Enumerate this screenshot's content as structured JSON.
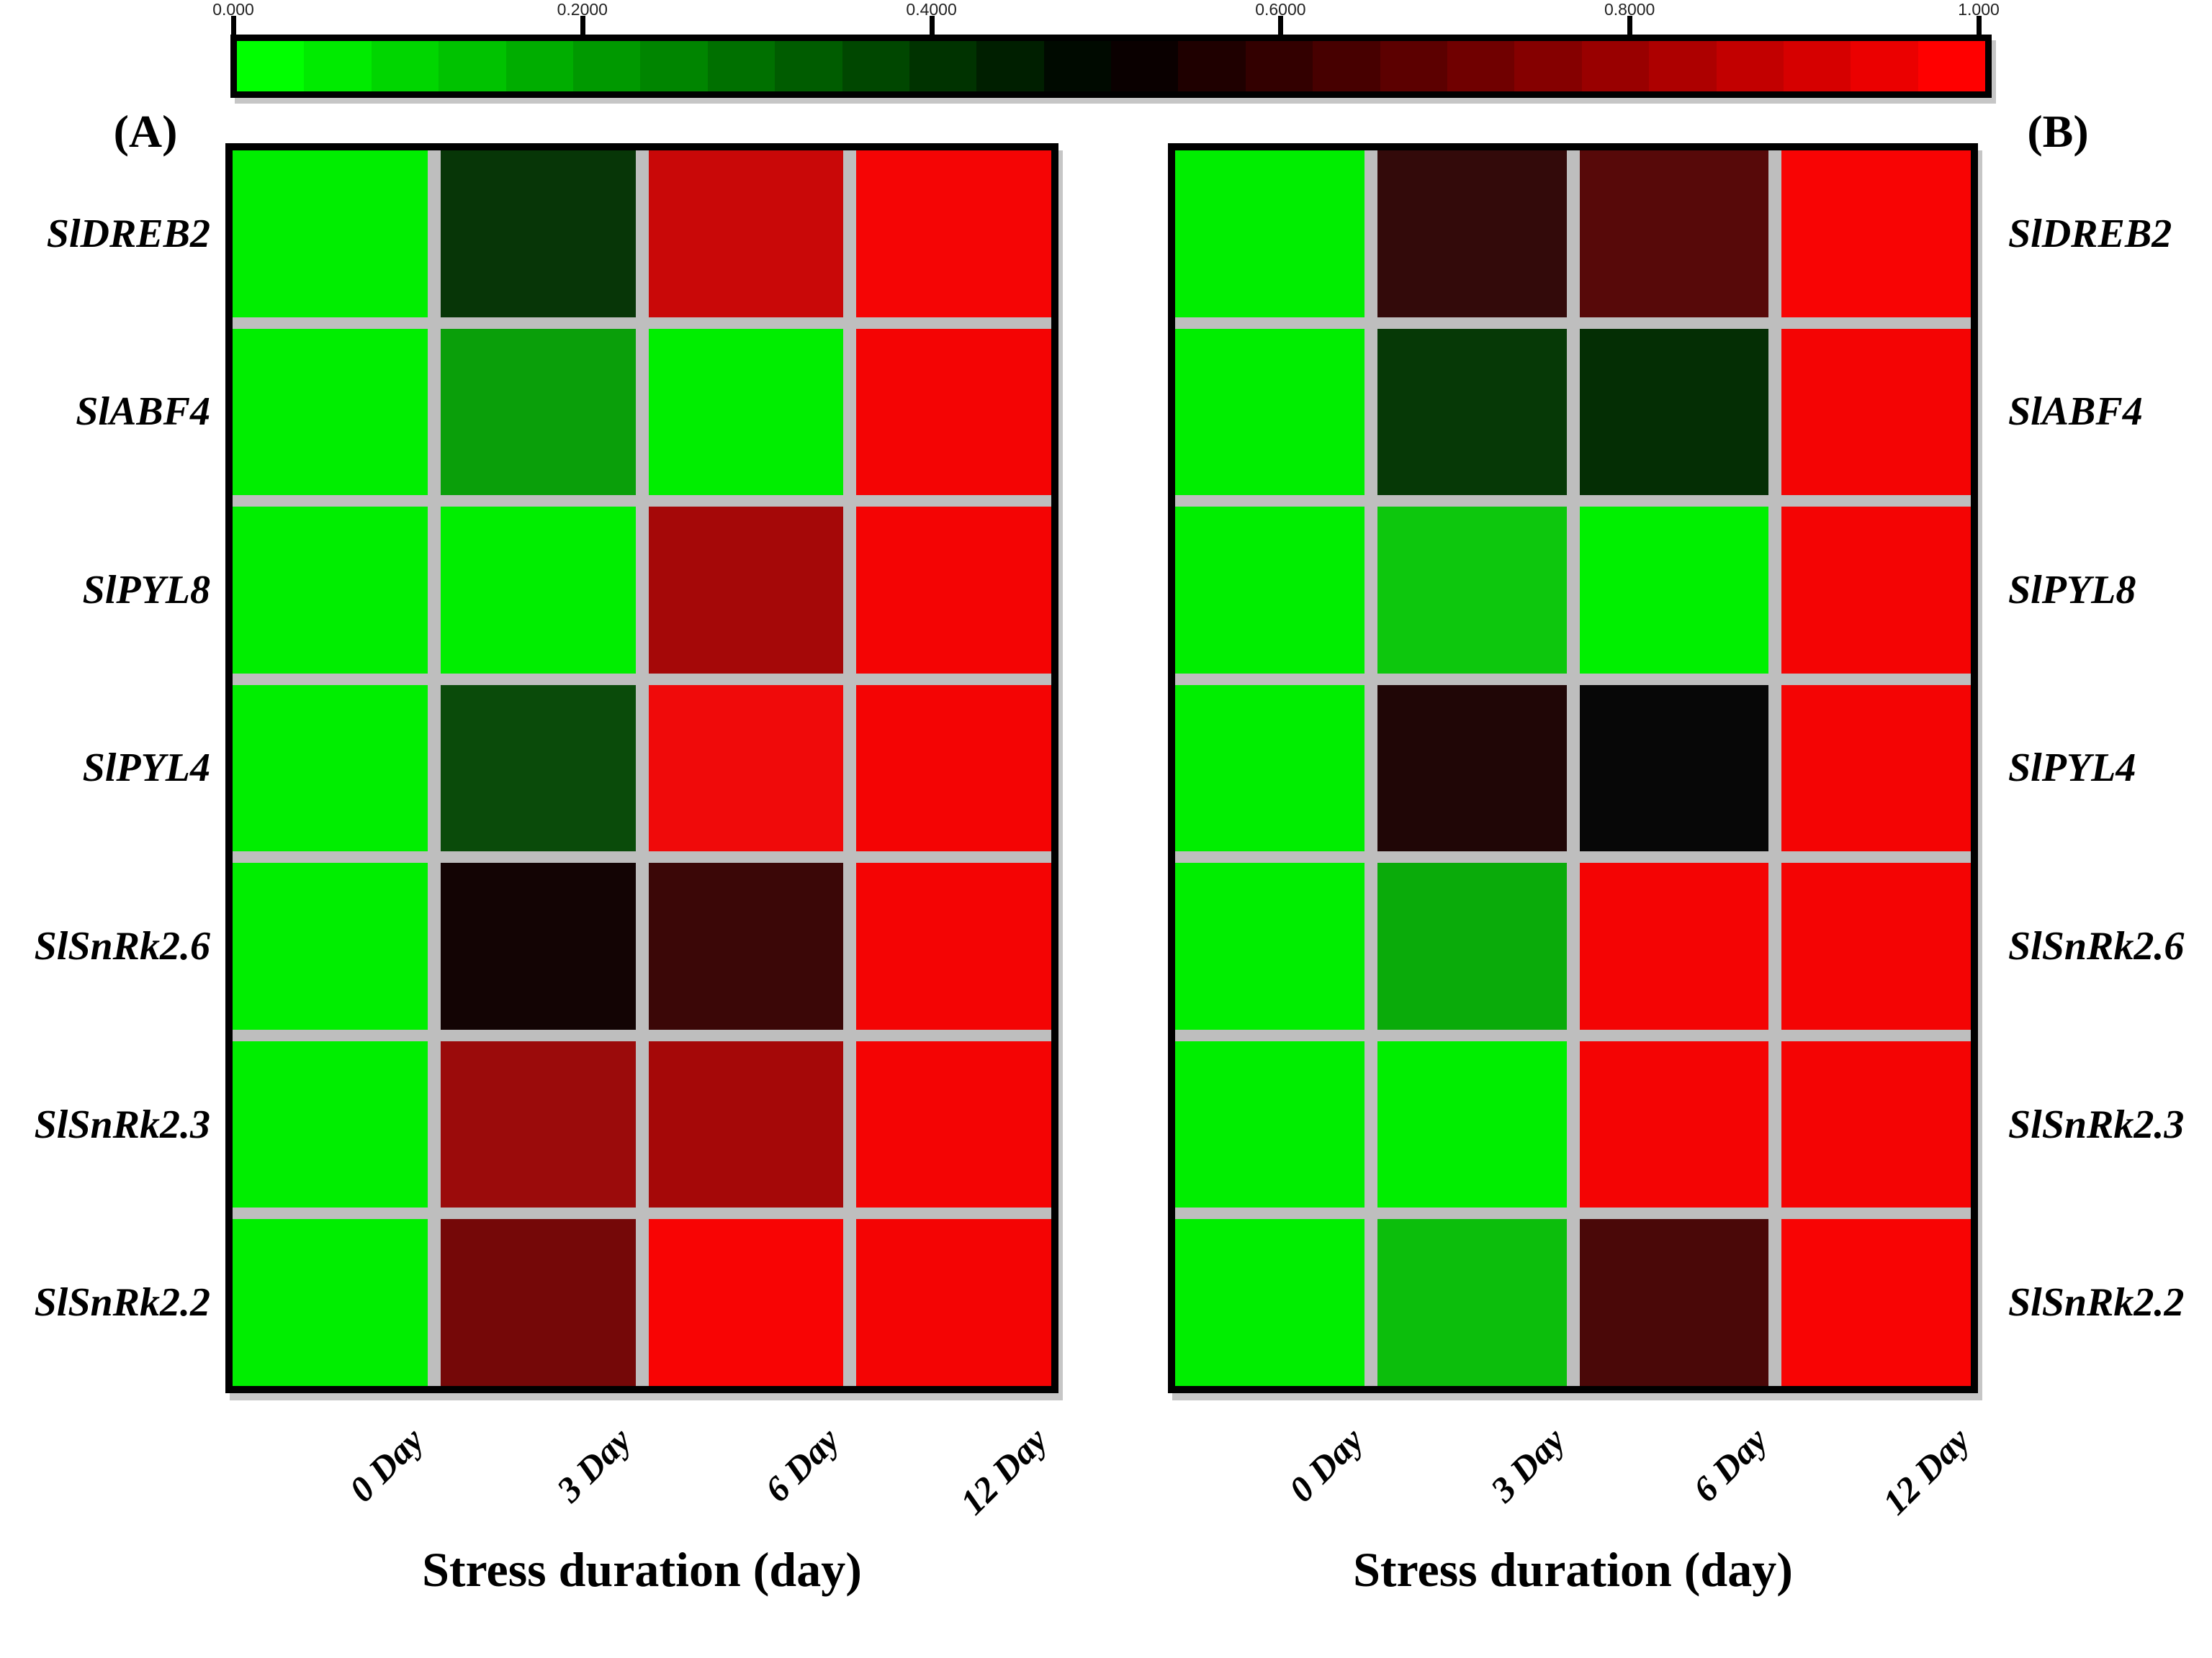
{
  "figure": {
    "panel_a_letter": "(A)",
    "panel_b_letter": "(B)",
    "x_axis_title": "Stress duration (day)"
  },
  "colorbar": {
    "tick_labels": [
      "0.000",
      "0.2000",
      "0.4000",
      "0.6000",
      "0.8000",
      "1.000"
    ],
    "tick_values": [
      0,
      0.2,
      0.4,
      0.6,
      0.8,
      1.0
    ],
    "segments": 26,
    "min_color": "#00FF00",
    "mid_color": "#000000",
    "max_color": "#FF0000"
  },
  "colors": {
    "grid_gap": "#BEBEBE",
    "panel_border": "#000000",
    "background": "#FFFFFF"
  },
  "chart_data": {
    "type": "heatmap",
    "x_categories": [
      "0 Day",
      "3 Day",
      "6 Day",
      "12 Day"
    ],
    "y_categories": [
      "SlDREB2",
      "SlABF4",
      "SlPYL8",
      "SlPYL4",
      "SlSnRk2.6",
      "SlSnRk2.3",
      "SlSnRk2.2"
    ],
    "scale_range": [
      0,
      1
    ],
    "colormap": "green(0) -> black(0.5) -> red(1)",
    "xlabel": "Stress duration (day)",
    "panels": [
      {
        "label": "(A)",
        "cells_hex": [
          [
            "#00EE00",
            "#073607",
            "#C90808",
            "#F50505"
          ],
          [
            "#00EE00",
            "#0A9F0A",
            "#00EE00",
            "#F40404"
          ],
          [
            "#00EE00",
            "#00EE00",
            "#A50808",
            "#F40404"
          ],
          [
            "#00EE00",
            "#0A4B0A",
            "#F00A0A",
            "#F40404"
          ],
          [
            "#00EE00",
            "#130404",
            "#3B0707",
            "#F40404"
          ],
          [
            "#00EE00",
            "#9B0B0B",
            "#A50808",
            "#F40404"
          ],
          [
            "#00EE00",
            "#750808",
            "#F80404",
            "#F40404"
          ]
        ],
        "values_est": [
          [
            0.03,
            0.39,
            0.89,
            0.98
          ],
          [
            0.03,
            0.19,
            0.03,
            0.98
          ],
          [
            0.03,
            0.03,
            0.82,
            0.98
          ],
          [
            0.03,
            0.35,
            0.97,
            0.98
          ],
          [
            0.03,
            0.54,
            0.62,
            0.98
          ],
          [
            0.03,
            0.8,
            0.82,
            0.98
          ],
          [
            0.03,
            0.73,
            0.99,
            0.98
          ]
        ]
      },
      {
        "label": "(B)",
        "cells_hex": [
          [
            "#00EE00",
            "#330A0A",
            "#570909",
            "#F80404"
          ],
          [
            "#00EE00",
            "#063906",
            "#042E04",
            "#F40404"
          ],
          [
            "#00EE00",
            "#0DC70D",
            "#00F000",
            "#F40404"
          ],
          [
            "#00EE00",
            "#200606",
            "#070707",
            "#F40404"
          ],
          [
            "#00EE00",
            "#0AAB0A",
            "#F40404",
            "#F40404"
          ],
          [
            "#00EE00",
            "#00EE00",
            "#F40404",
            "#F40404"
          ],
          [
            "#00EE00",
            "#0CBE0C",
            "#4A0808",
            "#F80404"
          ]
        ],
        "values_est": [
          [
            0.03,
            0.6,
            0.67,
            0.99
          ],
          [
            0.03,
            0.39,
            0.41,
            0.98
          ],
          [
            0.03,
            0.11,
            0.03,
            0.98
          ],
          [
            0.03,
            0.56,
            0.5,
            0.98
          ],
          [
            0.03,
            0.17,
            0.98,
            0.98
          ],
          [
            0.03,
            0.03,
            0.98,
            0.98
          ],
          [
            0.03,
            0.13,
            0.64,
            0.99
          ]
        ]
      }
    ]
  }
}
